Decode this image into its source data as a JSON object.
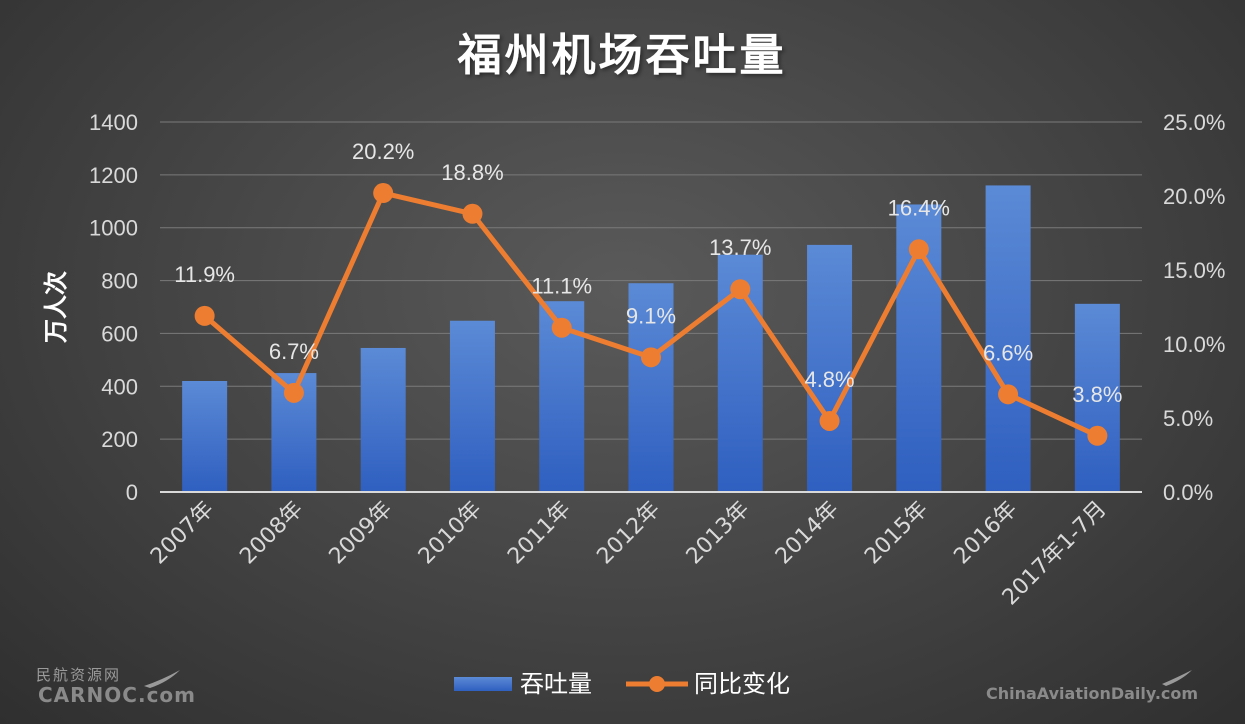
{
  "chart_data": {
    "type": "bar+line",
    "title": "福州机场吞吐量",
    "ylabel": "万人次",
    "ylim": [
      0,
      1400
    ],
    "yticks": [
      "0",
      "200",
      "400",
      "600",
      "800",
      "1000",
      "1200",
      "1400"
    ],
    "y2lim": [
      0,
      25
    ],
    "y2ticks": [
      "0.0%",
      "5.0%",
      "10.0%",
      "15.0%",
      "20.0%",
      "25.0%"
    ],
    "categories": [
      "2007年",
      "2008年",
      "2009年",
      "2010年",
      "2011年",
      "2012年",
      "2013年",
      "2014年",
      "2015年",
      "2016年",
      "2017年1-7月"
    ],
    "series": [
      {
        "name": "吞吐量",
        "type": "bar",
        "axis": "left",
        "color": "#4472c4",
        "values": [
          420,
          450,
          545,
          648,
          722,
          790,
          898,
          935,
          1088,
          1160,
          712
        ]
      },
      {
        "name": "同比变化",
        "type": "line",
        "axis": "right",
        "color": "#ed7d31",
        "values": [
          11.9,
          6.7,
          20.2,
          18.8,
          11.1,
          9.1,
          13.7,
          4.8,
          16.4,
          6.6,
          3.8
        ],
        "labels": [
          "11.9%",
          "6.7%",
          "20.2%",
          "18.8%",
          "11.1%",
          "9.1%",
          "13.7%",
          "4.8%",
          "16.4%",
          "6.6%",
          "3.8%"
        ]
      }
    ],
    "grid": true,
    "legend": "bottom"
  },
  "watermarks": {
    "left_cn": "民航资源网",
    "left_en": "CARNOC.com",
    "right": "ChinaAviationDaily.com"
  }
}
